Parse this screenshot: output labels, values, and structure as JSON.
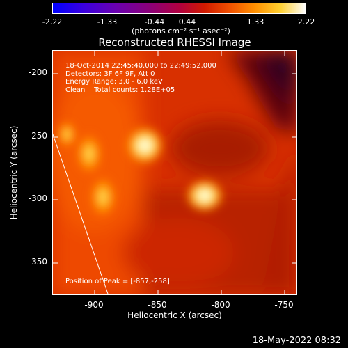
{
  "colorbar": {
    "ticks": [
      "-2.22",
      "-1.33",
      "-0.44",
      "0.44",
      "1.33",
      "2.22"
    ],
    "units": "(photons cm⁻² s⁻¹ asec⁻²)",
    "range": [
      -2.22,
      2.22
    ]
  },
  "title": "Reconstructed RHESSI Image",
  "annotation": {
    "line1": "18-Oct-2014 22:45:40.000 to 22:49:52.000",
    "line2": "Detectors: 3F 6F 9F, Att 0",
    "line3": "Energy Range: 3.0 - 6.0 keV",
    "line4": "Clean    Total counts: 1.28E+05",
    "peak": "Position of Peak = [-857,-258]"
  },
  "axes": {
    "ylabel": "Heliocentric Y (arcsec)",
    "xlabel": "Heliocentric X (arcsec)",
    "yticks": [
      "-200",
      "-250",
      "-300",
      "-350"
    ],
    "xticks": [
      "-900",
      "-850",
      "-800",
      "-750"
    ],
    "xrange": [
      -933,
      -740
    ],
    "yrange": [
      -375,
      -182
    ]
  },
  "sources": [
    {
      "x": -857,
      "y": -258
    },
    {
      "x": -808,
      "y": -298
    },
    {
      "x": -900,
      "y": -263
    },
    {
      "x": -893,
      "y": -297
    }
  ],
  "footer_stamp": "18-May-2022 08:32"
}
